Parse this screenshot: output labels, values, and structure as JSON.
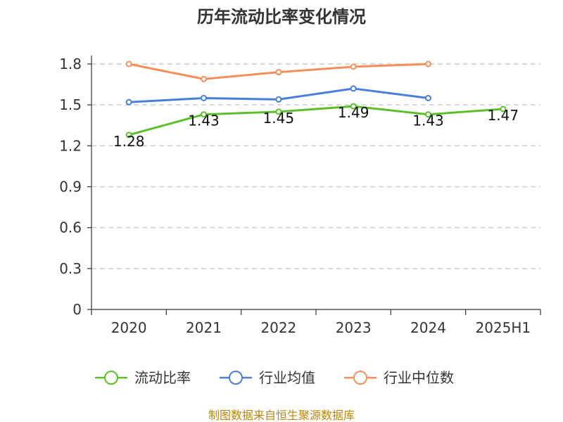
{
  "chart_data": {
    "type": "line",
    "title": "历年流动比率变化情况",
    "categories": [
      "2020",
      "2021",
      "2022",
      "2023",
      "2024",
      "2025H1"
    ],
    "yticks": [
      "0",
      "0.3",
      "0.6",
      "0.9",
      "1.2",
      "1.5",
      "1.8"
    ],
    "ylim": [
      0,
      1.8
    ],
    "grid": true,
    "legend_position": "bottom",
    "series": [
      {
        "name": "流动比率",
        "color": "#5cbf2a",
        "values": [
          1.28,
          1.43,
          1.45,
          1.49,
          1.43,
          1.47
        ],
        "labels": [
          "1.28",
          "1.43",
          "1.45",
          "1.49",
          "1.43",
          "1.47"
        ]
      },
      {
        "name": "行业均值",
        "color": "#4a7fd8",
        "values": [
          1.52,
          1.55,
          1.54,
          1.62,
          1.55,
          null
        ]
      },
      {
        "name": "行业中位数",
        "color": "#f58e5a",
        "values": [
          1.8,
          1.69,
          1.74,
          1.78,
          1.8,
          null
        ]
      }
    ]
  },
  "source": "制图数据来自恒生聚源数据库"
}
